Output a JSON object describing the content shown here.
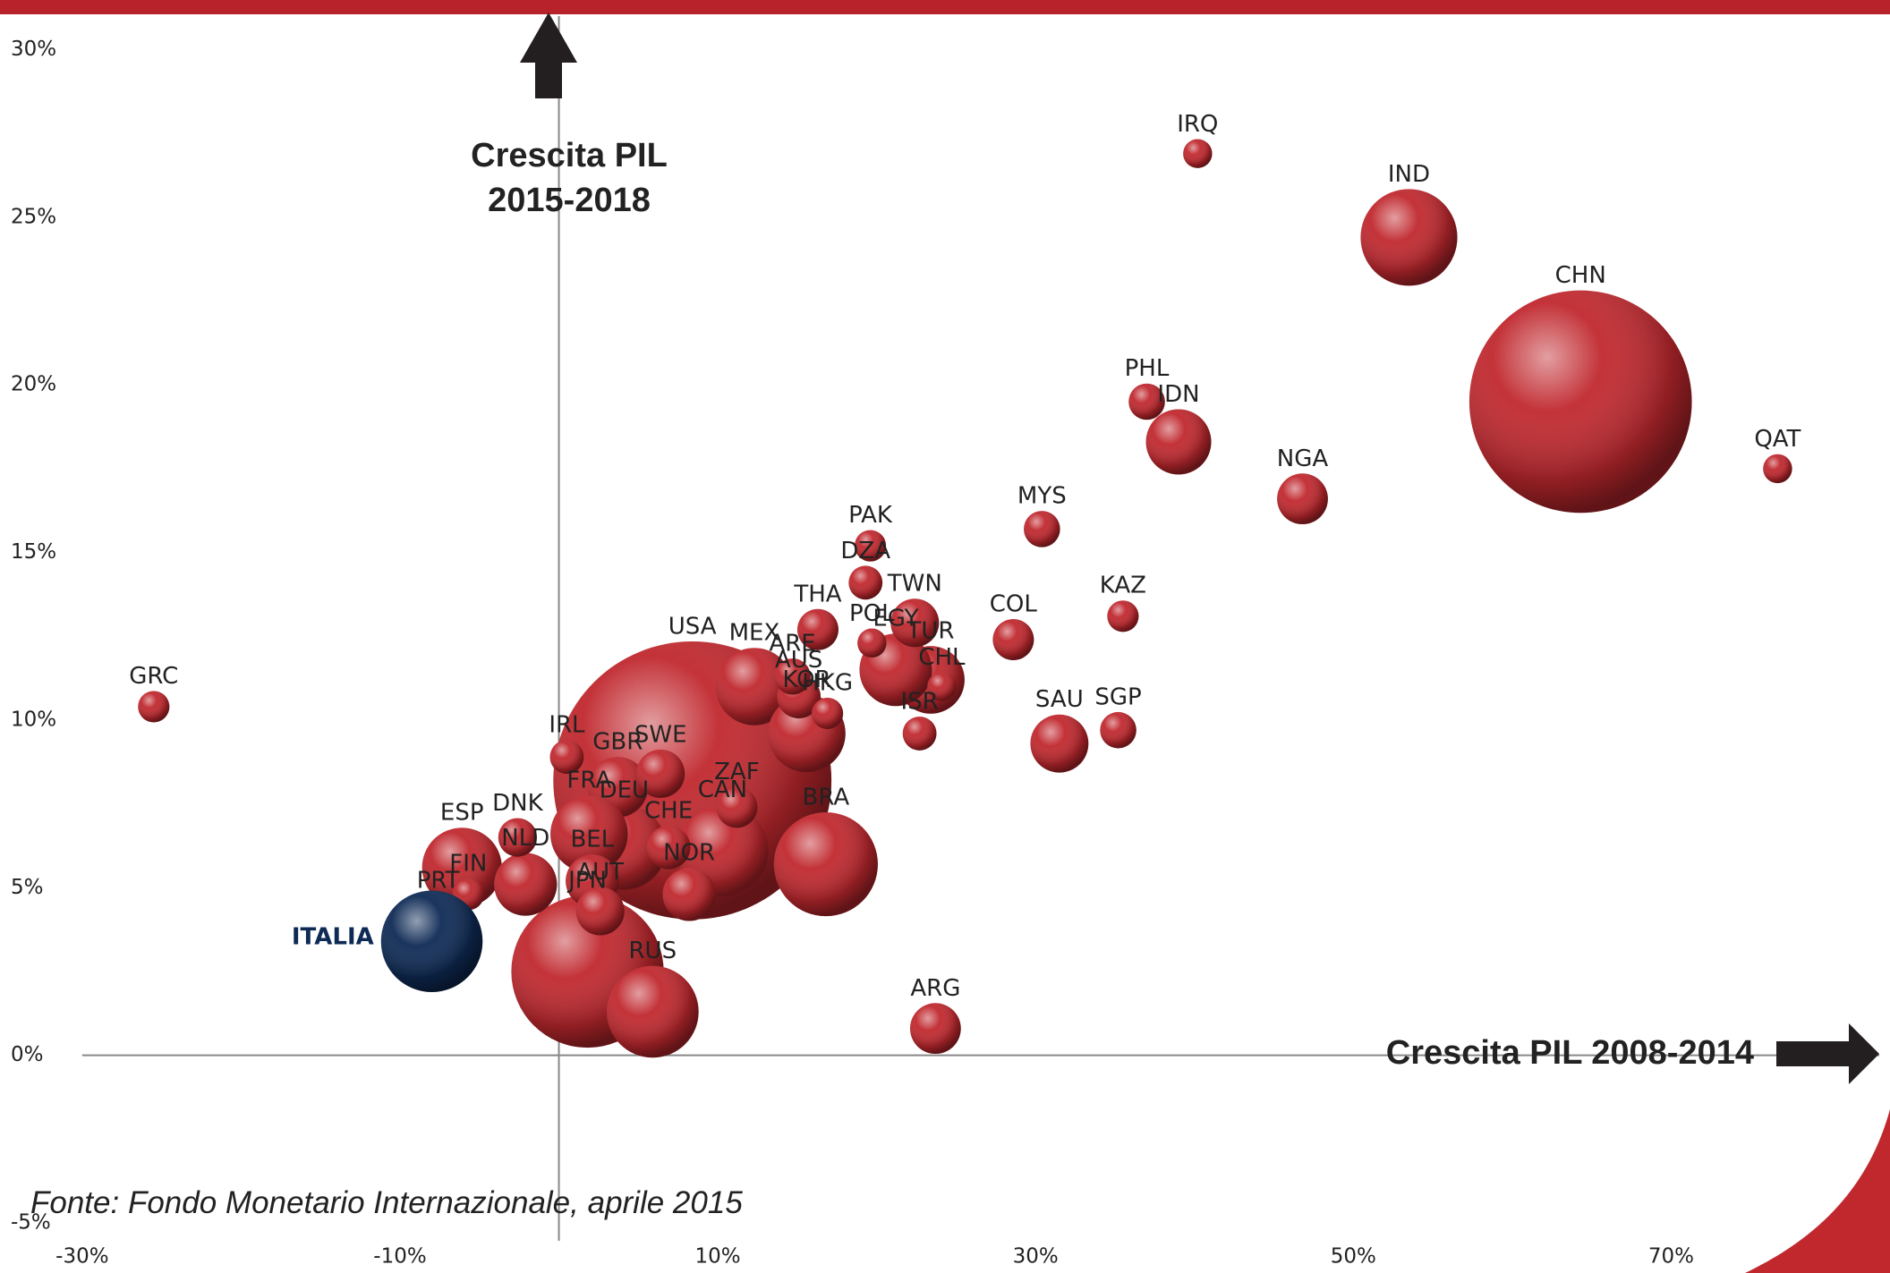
{
  "chart_data": {
    "type": "bubble",
    "annotations": {
      "y_title": [
        "Crescita PIL",
        "2015-2018"
      ],
      "x_title": "Crescita PIL 2008-2014",
      "source": "Fonte: Fondo Monetario Internazionale, aprile 2015"
    },
    "xlim": [
      -30,
      80
    ],
    "ylim": [
      -5,
      30
    ],
    "xticks": [
      {
        "value": -30,
        "label": "-30%"
      },
      {
        "value": -10,
        "label": "-10%"
      },
      {
        "value": 10,
        "label": "10%"
      },
      {
        "value": 30,
        "label": "30%"
      },
      {
        "value": 50,
        "label": "50%"
      },
      {
        "value": 70,
        "label": "70%"
      }
    ],
    "yticks": [
      {
        "value": -5,
        "label": "-5%"
      },
      {
        "value": 0,
        "label": "0%"
      },
      {
        "value": 5,
        "label": "5%"
      },
      {
        "value": 10,
        "label": "10%"
      },
      {
        "value": 15,
        "label": "15%"
      },
      {
        "value": 20,
        "label": "20%"
      },
      {
        "value": 25,
        "label": "25%"
      },
      {
        "value": 30,
        "label": "30%"
      }
    ],
    "series": [
      {
        "color": "#c0282e",
        "labels": [
          "USA",
          "CHN",
          "JPN",
          "IND",
          "BRA",
          "RUS",
          "CAN",
          "DEU",
          "GBR",
          "FRA",
          "MEX",
          "KOR",
          "ESP",
          "IDN",
          "AUS",
          "TUR",
          "EGY",
          "SAU",
          "NLD",
          "BEL",
          "NOR",
          "NGA",
          "AUT",
          "TWN",
          "ARG",
          "SWE",
          "CHE",
          "THA",
          "COL",
          "POL",
          "ZAF",
          "DNK",
          "MYS",
          "PHL",
          "IRL",
          "ARE",
          "SGP",
          "ISR",
          "PAK",
          "DZA",
          "KAZ",
          "IRQ",
          "HKG",
          "FIN",
          "PRT",
          "CHL",
          "GRC",
          "QAT"
        ],
        "x": [
          8.4,
          64.3,
          1.8,
          53.5,
          16.8,
          5.9,
          10.3,
          4.1,
          3.7,
          1.9,
          12.3,
          15.6,
          -6.1,
          39.0,
          15.1,
          23.4,
          21.2,
          31.5,
          -2.1,
          2.1,
          8.2,
          46.8,
          2.6,
          22.4,
          23.7,
          6.4,
          6.9,
          16.3,
          28.6,
          19.7,
          11.2,
          -2.6,
          30.4,
          37.0,
          0.5,
          14.7,
          35.2,
          22.7,
          19.6,
          19.3,
          35.5,
          40.2,
          16.9,
          -5.7,
          -7.6,
          24.1,
          -25.5,
          76.7
        ],
        "y": [
          8.2,
          19.5,
          2.5,
          24.4,
          5.7,
          1.3,
          6.1,
          6.2,
          8.0,
          6.6,
          11.0,
          9.6,
          5.6,
          18.3,
          10.7,
          11.2,
          11.5,
          9.3,
          5.1,
          5.2,
          4.8,
          16.6,
          4.3,
          12.9,
          0.8,
          8.4,
          6.2,
          12.7,
          12.4,
          12.3,
          7.4,
          6.5,
          15.7,
          19.5,
          8.9,
          11.3,
          9.7,
          9.6,
          15.2,
          14.1,
          13.1,
          26.9,
          10.2,
          4.8,
          4.3,
          11.0,
          10.4,
          17.5
        ],
        "sizes": [
          115,
          92,
          63,
          40,
          43,
          38,
          38,
          35,
          25,
          32,
          32,
          32,
          33,
          27,
          18,
          28,
          30,
          24,
          26,
          22,
          22,
          21,
          20,
          20,
          21,
          20,
          18,
          17,
          17,
          12,
          17,
          16,
          15,
          15,
          14,
          15,
          15,
          14,
          13,
          14,
          13,
          12,
          13,
          13,
          13,
          12,
          13,
          12
        ]
      },
      {
        "color": "#0e2a55",
        "labels": [
          "ITALIA"
        ],
        "x": [
          -8.0
        ],
        "y": [
          3.4
        ],
        "sizes": [
          42
        ]
      }
    ]
  }
}
